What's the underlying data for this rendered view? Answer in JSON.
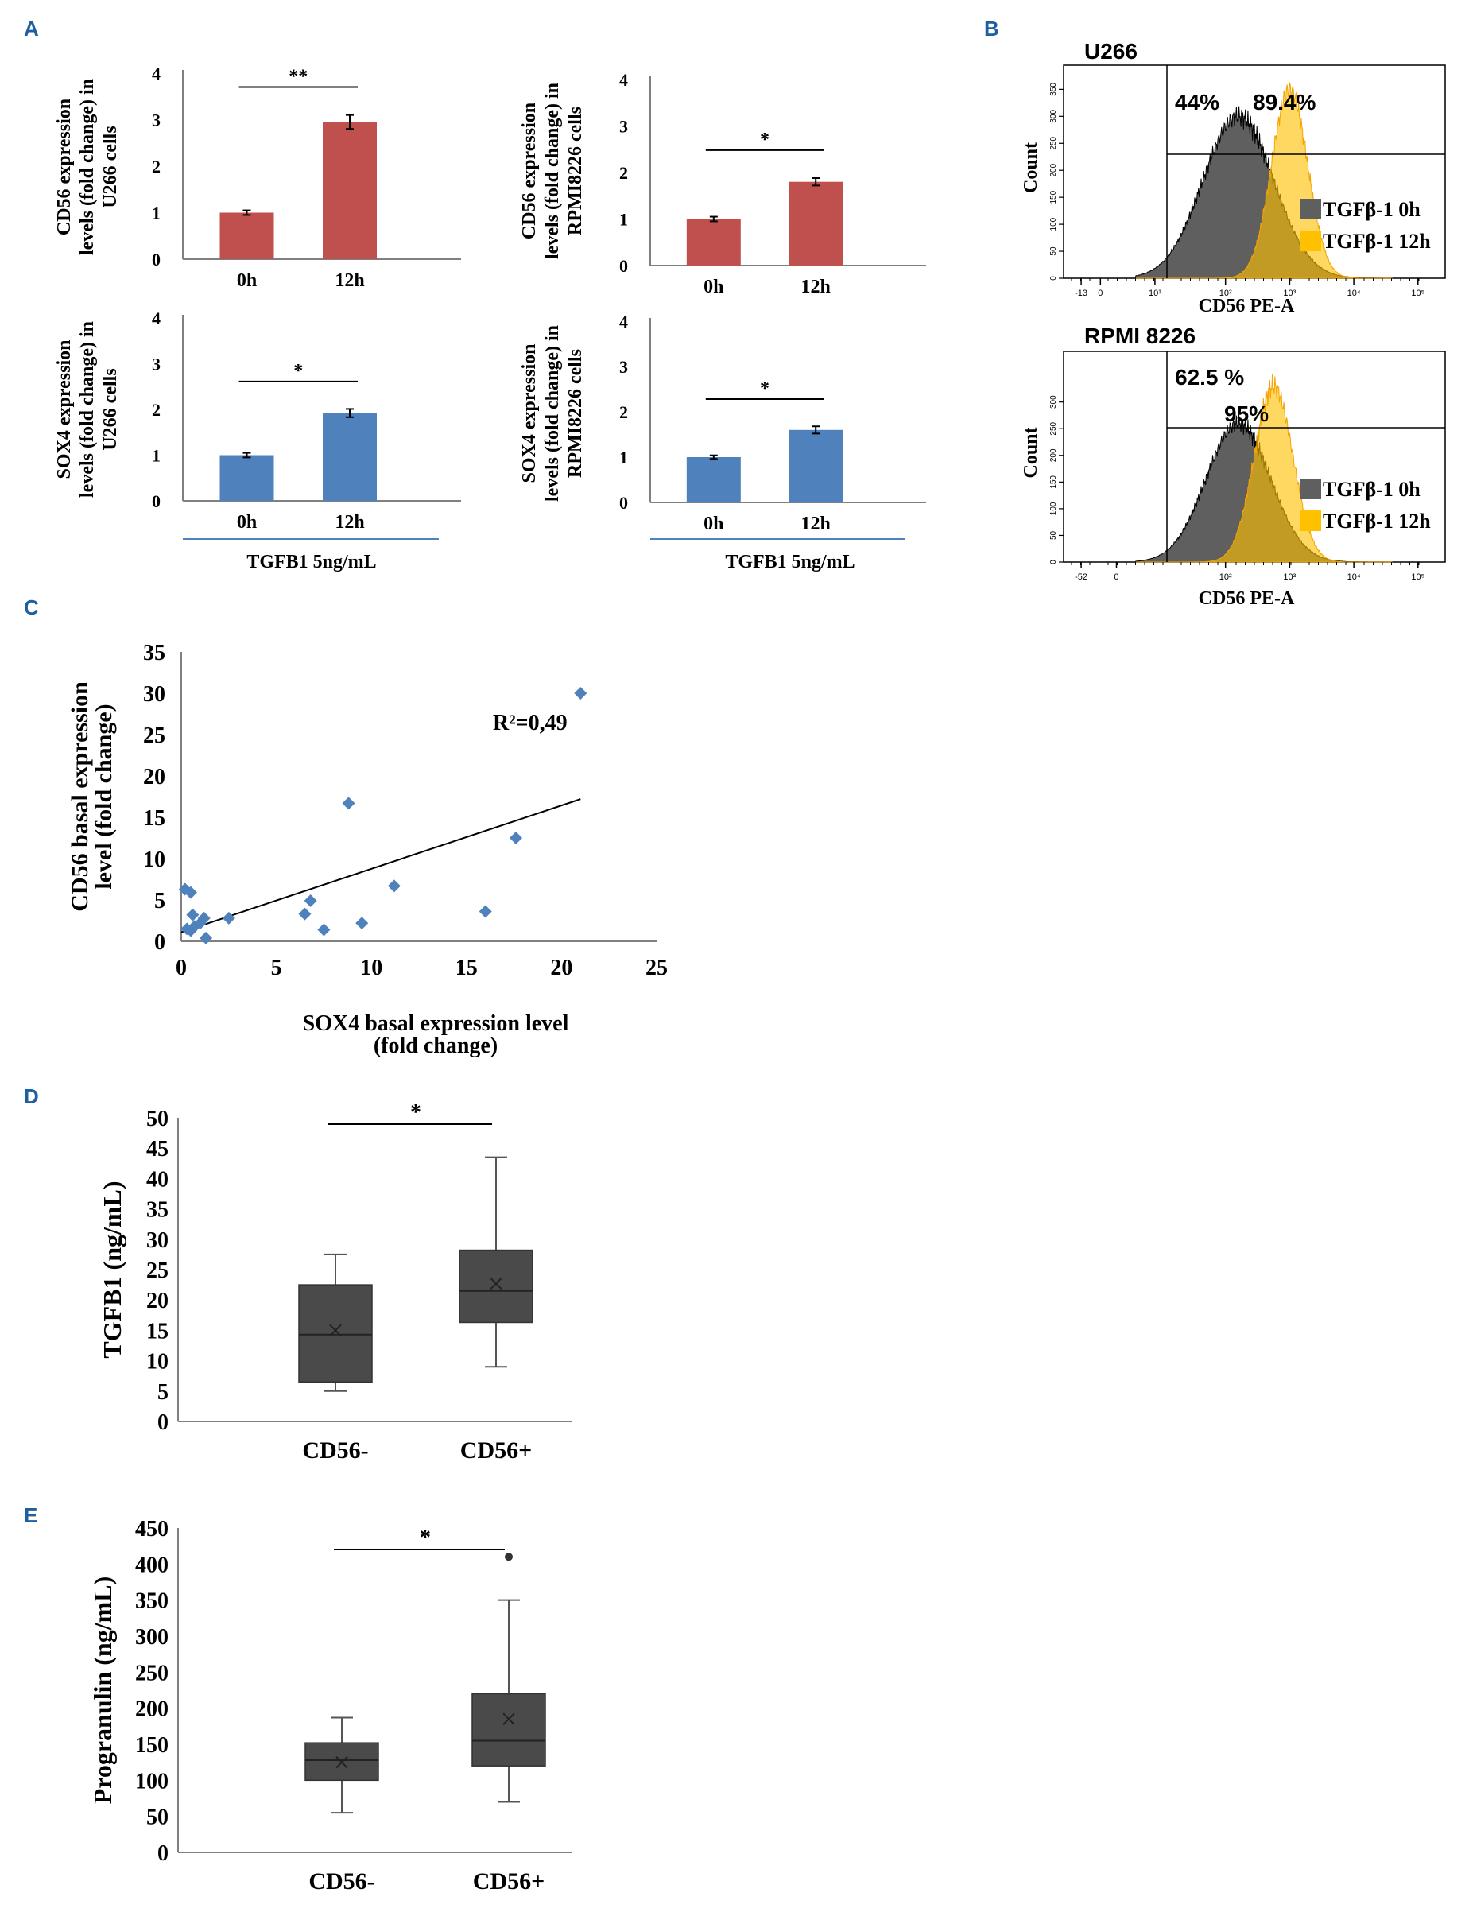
{
  "colors": {
    "panel_letter": "#1f5fa0",
    "red_bar": "#c0504d",
    "blue_bar": "#4f81bd",
    "scatter_point": "#4f81bd",
    "gray_hist": "#5f5f5f",
    "orange_hist": "#ffc000",
    "box_fill": "#4a4a4a",
    "rule_blue": "#4f81bd"
  },
  "panels": {
    "A": "A",
    "B": "B",
    "C": "C",
    "D": "D",
    "E": "E"
  },
  "chart_data": [
    {
      "panel": "A",
      "type": "bar",
      "ylabel": "CD56 expression levels (fold change) in U266 cells",
      "categories": [
        "0h",
        "12h"
      ],
      "values": [
        1.0,
        2.95
      ],
      "errors": [
        0.05,
        0.15
      ],
      "ylim": [
        0,
        4
      ],
      "yticks": [
        "0",
        "1",
        "2",
        "3",
        "4"
      ],
      "significance": "**",
      "color": "#c0504d"
    },
    {
      "panel": "A",
      "type": "bar",
      "ylabel": "CD56 expression levels (fold change) in RPMI8226 cells",
      "categories": [
        "0h",
        "12h"
      ],
      "values": [
        1.0,
        1.8
      ],
      "errors": [
        0.05,
        0.08
      ],
      "ylim": [
        0,
        4
      ],
      "yticks": [
        "0",
        "1",
        "2",
        "3",
        "4"
      ],
      "significance": "*",
      "color": "#c0504d"
    },
    {
      "panel": "A",
      "type": "bar",
      "ylabel": "SOX4 expression levels (fold change) in U266 cells",
      "categories": [
        "0h",
        "12h"
      ],
      "values": [
        1.0,
        1.92
      ],
      "errors": [
        0.05,
        0.09
      ],
      "ylim": [
        0,
        4
      ],
      "yticks": [
        "0",
        "1",
        "2",
        "3",
        "4"
      ],
      "significance": "*",
      "color": "#4f81bd",
      "footer": "TGFB1 5ng/mL"
    },
    {
      "panel": "A",
      "type": "bar",
      "ylabel": "SOX4 expression levels (fold change) in RPMI8226 cells",
      "categories": [
        "0h",
        "12h"
      ],
      "values": [
        1.0,
        1.6
      ],
      "errors": [
        0.04,
        0.08
      ],
      "ylim": [
        0,
        4
      ],
      "yticks": [
        "0",
        "1",
        "2",
        "3",
        "4"
      ],
      "significance": "*",
      "color": "#4f81bd",
      "footer": "TGFB1 5ng/mL"
    },
    {
      "panel": "B",
      "type": "area",
      "title": "U266",
      "xlabel": "CD56 PE-A",
      "ylabel": "Count",
      "gate_labels": [
        "44%",
        "89.4%"
      ],
      "legend": [
        "TGFβ-1 0h",
        "TGFβ-1 12h"
      ],
      "xticks": [
        "-13",
        "0",
        "10¹",
        "10²",
        "10³",
        "10⁴",
        "10⁵"
      ],
      "yticks": [
        "0",
        "50",
        "100",
        "150",
        "200",
        "250",
        "300",
        "350"
      ],
      "series": [
        {
          "name": "TGFβ-1 0h",
          "peak_log10": 2.2,
          "width": 0.55,
          "peak_count": 300
        },
        {
          "name": "TGFβ-1 12h",
          "peak_log10": 3.0,
          "width": 0.28,
          "peak_count": 350
        }
      ]
    },
    {
      "panel": "B",
      "type": "area",
      "title": "RPMI 8226",
      "xlabel": "CD56 PE-A",
      "ylabel": "Count",
      "gate_labels": [
        "62.5 %",
        "95%"
      ],
      "legend": [
        "TGFβ-1 0h",
        "TGFβ-1 12h"
      ],
      "xticks": [
        "-52",
        "0",
        "10²",
        "10³",
        "10⁴",
        "10⁵"
      ],
      "yticks": [
        "0",
        "50",
        "100",
        "150",
        "200",
        "250",
        "300"
      ],
      "series": [
        {
          "name": "TGFβ-1 0h",
          "peak_log10": 2.2,
          "width": 0.5,
          "peak_count": 260
        },
        {
          "name": "TGFβ-1 12h",
          "peak_log10": 2.75,
          "width": 0.3,
          "peak_count": 330
        }
      ]
    },
    {
      "panel": "C",
      "type": "scatter",
      "xlabel": "SOX4 basal expression level (fold change)",
      "ylabel": "CD56 basal expression level (fold change)",
      "annotation": "R²=0,49",
      "xlim": [
        0,
        25
      ],
      "ylim": [
        0,
        35
      ],
      "xticks": [
        "0",
        "5",
        "10",
        "15",
        "20",
        "25"
      ],
      "yticks": [
        "0",
        "5",
        "10",
        "15",
        "20",
        "25",
        "30",
        "35"
      ],
      "x": [
        0.2,
        0.5,
        0.5,
        0.3,
        0.6,
        0.7,
        1.0,
        1.2,
        1.3,
        2.5,
        6.5,
        6.8,
        7.5,
        8.8,
        9.5,
        11.2,
        16.0,
        17.6,
        21.0
      ],
      "y": [
        6.3,
        5.9,
        1.3,
        1.5,
        3.2,
        1.8,
        2.2,
        2.8,
        0.4,
        2.8,
        3.3,
        4.9,
        1.4,
        16.7,
        2.2,
        6.7,
        3.6,
        12.5,
        30.0
      ],
      "trendline": {
        "x": [
          0,
          21
        ],
        "y": [
          1.1,
          17.2
        ]
      }
    },
    {
      "panel": "D",
      "type": "box",
      "ylabel": "TGFB1 (ng/mL)",
      "categories": [
        "CD56-",
        "CD56+"
      ],
      "ylim": [
        0,
        50
      ],
      "yticks": [
        "0",
        "5",
        "10",
        "15",
        "20",
        "25",
        "30",
        "35",
        "40",
        "45",
        "50"
      ],
      "significance": "*",
      "boxes": [
        {
          "min": 5,
          "q1": 6.5,
          "median": 14.3,
          "q3": 22.5,
          "max": 27.5,
          "mean": 15
        },
        {
          "min": 9,
          "q1": 16.3,
          "median": 21.5,
          "q3": 28.2,
          "max": 43.5,
          "mean": 22.7
        }
      ]
    },
    {
      "panel": "E",
      "type": "box",
      "ylabel": "Progranulin (ng/mL)",
      "categories": [
        "CD56-",
        "CD56+"
      ],
      "ylim": [
        0,
        450
      ],
      "yticks": [
        "0",
        "50",
        "100",
        "150",
        "200",
        "250",
        "300",
        "350",
        "400",
        "450"
      ],
      "significance": "*",
      "boxes": [
        {
          "min": 55,
          "q1": 100,
          "median": 128,
          "q3": 152,
          "max": 187,
          "mean": 125
        },
        {
          "min": 70,
          "q1": 120,
          "median": 155,
          "q3": 220,
          "max": 350,
          "mean": 185,
          "outliers": [
            410
          ]
        }
      ]
    }
  ]
}
